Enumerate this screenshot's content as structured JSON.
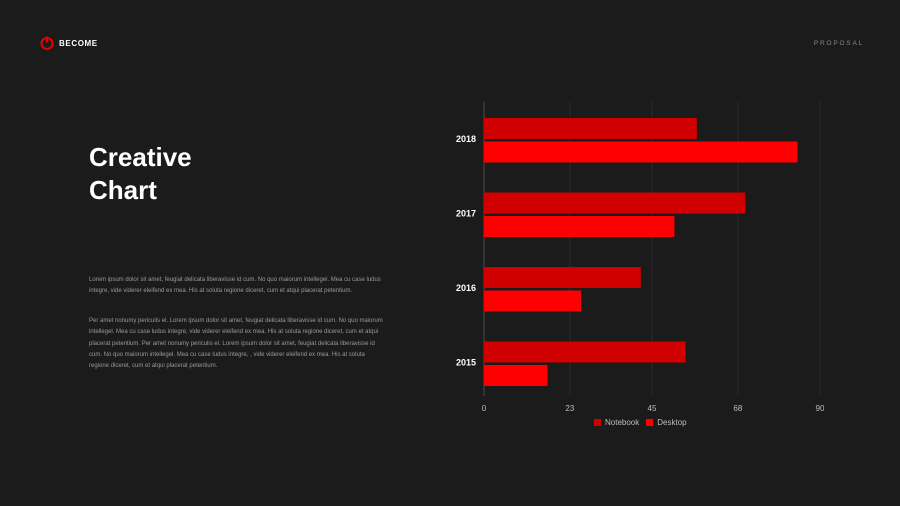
{
  "header": {
    "brand": "BECOME",
    "section": "PROPOSAL"
  },
  "title": {
    "line1": "Creative",
    "line2": "Chart"
  },
  "paragraphs": [
    "Lorem ipsum dolor sit amet, feugiat delicata liberavisse id cum. No quo maiorum intellegel. Mea cu case ludus integre, vide viderer eleifend ex mea. His at soluta regione diceret, cum et atqui placerat petentium.",
    "Per amet nonumy periculis ei. Lorem ipsum dolor sit amet, feugiat delicata liberavisse id cum. No quo maiorum intellegel. Mea cu case ludus integre, vide viderer eleifend ex mea. His at soluta regione diceret, cum et atqui placerat petentium. Per amet nonumy periculis ei. Lorem ipsum dolor sit amet, feugiat delicata liberavisse id cum. No quo maiorum intellegel. Mea cu case ludus integre, , vide viderer eleifend ex mea. His at soluta regione diceret, cum et atqui placerat petentium."
  ],
  "colors": {
    "background": "#1b1b1c",
    "notebook": "#d10000",
    "desktop": "#ff0000"
  },
  "chart_data": {
    "type": "bar",
    "orientation": "horizontal",
    "categories": [
      "2018",
      "2017",
      "2016",
      "2015"
    ],
    "series": [
      {
        "name": "Notebook",
        "values": [
          57,
          70,
          42,
          54
        ]
      },
      {
        "name": "Desktop",
        "values": [
          84,
          51,
          26,
          17
        ]
      }
    ],
    "xticks": [
      "0",
      "23",
      "45",
      "68",
      "90"
    ],
    "xlim": [
      0,
      90
    ],
    "grid": true,
    "legend": "bottom"
  }
}
